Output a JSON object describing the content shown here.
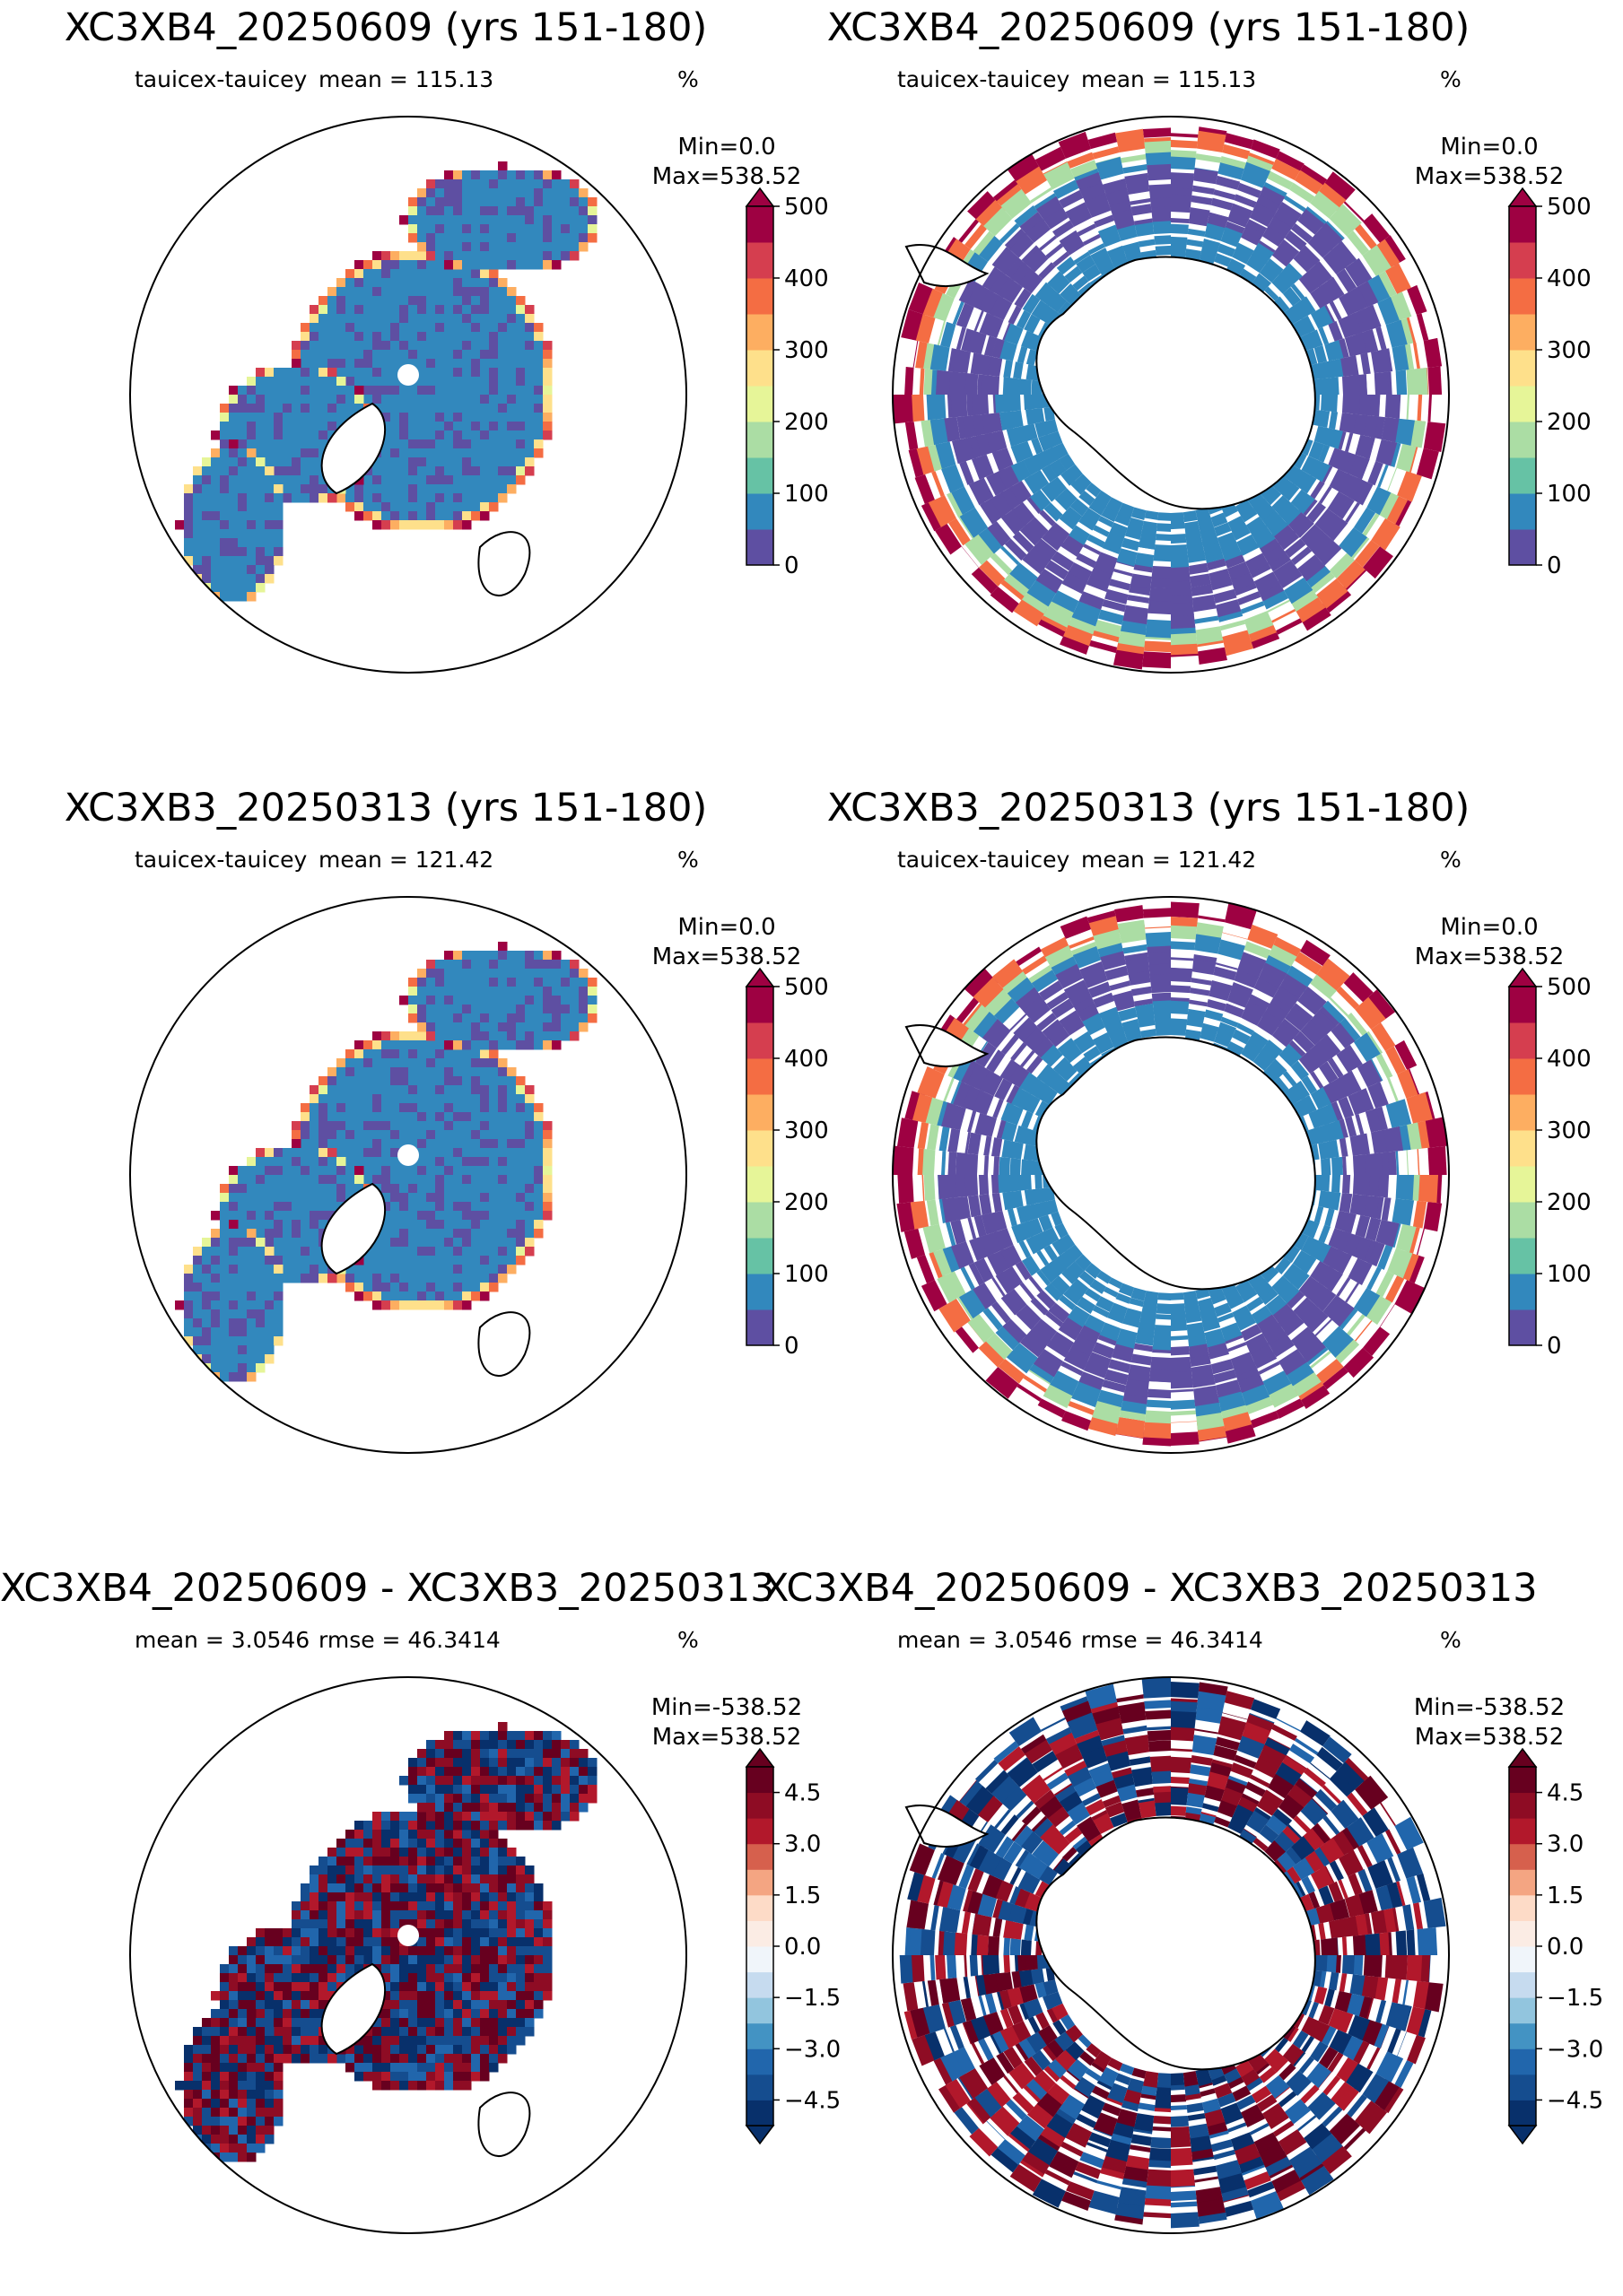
{
  "chart_data": [
    {
      "type": "heatmap",
      "hemisphere": "north",
      "title": "XC3XB4_20250609 (yrs 151-180)",
      "subtitle_left": "tauicex-tauicey",
      "subtitle_mid": "mean = 115.13",
      "units": "%",
      "min_label": "Min=0.0",
      "max_label": "Max=538.52",
      "colormap": "Spectral_r",
      "colorbar": {
        "ticks": [
          "0",
          "100",
          "200",
          "300",
          "400",
          "500"
        ],
        "vmin": 0,
        "vmax": 500,
        "levels": 10,
        "extend": "max",
        "colors": [
          "#5e4fa2",
          "#3288bd",
          "#66c2a5",
          "#abdda4",
          "#e6f598",
          "#fee08b",
          "#fdae61",
          "#f46d43",
          "#d53e4f",
          "#9e0142"
        ]
      }
    },
    {
      "type": "heatmap",
      "hemisphere": "south",
      "title": "XC3XB4_20250609 (yrs 151-180)",
      "subtitle_left": "tauicex-tauicey",
      "subtitle_mid": "mean = 115.13",
      "units": "%",
      "min_label": "Min=0.0",
      "max_label": "Max=538.52",
      "colormap": "Spectral_r",
      "colorbar": {
        "ticks": [
          "0",
          "100",
          "200",
          "300",
          "400",
          "500"
        ],
        "vmin": 0,
        "vmax": 500,
        "levels": 10,
        "extend": "max",
        "colors": [
          "#5e4fa2",
          "#3288bd",
          "#66c2a5",
          "#abdda4",
          "#e6f598",
          "#fee08b",
          "#fdae61",
          "#f46d43",
          "#d53e4f",
          "#9e0142"
        ]
      }
    },
    {
      "type": "heatmap",
      "hemisphere": "north",
      "title": "XC3XB3_20250313 (yrs 151-180)",
      "subtitle_left": "tauicex-tauicey",
      "subtitle_mid": "mean = 121.42",
      "units": "%",
      "min_label": "Min=0.0",
      "max_label": "Max=538.52",
      "colormap": "Spectral_r",
      "colorbar": {
        "ticks": [
          "0",
          "100",
          "200",
          "300",
          "400",
          "500"
        ],
        "vmin": 0,
        "vmax": 500,
        "levels": 10,
        "extend": "max",
        "colors": [
          "#5e4fa2",
          "#3288bd",
          "#66c2a5",
          "#abdda4",
          "#e6f598",
          "#fee08b",
          "#fdae61",
          "#f46d43",
          "#d53e4f",
          "#9e0142"
        ]
      }
    },
    {
      "type": "heatmap",
      "hemisphere": "south",
      "title": "XC3XB3_20250313 (yrs 151-180)",
      "subtitle_left": "tauicex-tauicey",
      "subtitle_mid": "mean = 121.42",
      "units": "%",
      "min_label": "Min=0.0",
      "max_label": "Max=538.52",
      "colormap": "Spectral_r",
      "colorbar": {
        "ticks": [
          "0",
          "100",
          "200",
          "300",
          "400",
          "500"
        ],
        "vmin": 0,
        "vmax": 500,
        "levels": 10,
        "extend": "max",
        "colors": [
          "#5e4fa2",
          "#3288bd",
          "#66c2a5",
          "#abdda4",
          "#e6f598",
          "#fee08b",
          "#fdae61",
          "#f46d43",
          "#d53e4f",
          "#9e0142"
        ]
      }
    },
    {
      "type": "heatmap",
      "hemisphere": "north",
      "title": "XC3XB4_20250609 - XC3XB3_20250313",
      "subtitle_left": "mean = 3.0546",
      "subtitle_mid": "rmse = 46.3414",
      "units": "%",
      "min_label": "Min=-538.52",
      "max_label": "Max=538.52",
      "colormap": "RdBu_r",
      "colorbar": {
        "ticks": [
          "−4.5",
          "−3.0",
          "−1.5",
          "0.0",
          "1.5",
          "3.0",
          "4.5"
        ],
        "vmin": -5.25,
        "vmax": 5.25,
        "levels": 14,
        "extend": "both",
        "colors": [
          "#08306b",
          "#154d8f",
          "#2166ac",
          "#4393c3",
          "#92c5de",
          "#c6dbef",
          "#f0f5fa",
          "#fbece4",
          "#fddbc7",
          "#f4a582",
          "#d6604d",
          "#b2182b",
          "#8e0c24",
          "#67001f"
        ]
      }
    },
    {
      "type": "heatmap",
      "hemisphere": "south",
      "title": "XC3XB4_20250609 - XC3XB3_20250313",
      "subtitle_left": "mean = 3.0546",
      "subtitle_mid": "rmse = 46.3414",
      "units": "%",
      "min_label": "Min=-538.52",
      "max_label": "Max=538.52",
      "colormap": "RdBu_r",
      "colorbar": {
        "ticks": [
          "−4.5",
          "−3.0",
          "−1.5",
          "0.0",
          "1.5",
          "3.0",
          "4.5"
        ],
        "vmin": -5.25,
        "vmax": 5.25,
        "levels": 14,
        "extend": "both",
        "colors": [
          "#08306b",
          "#154d8f",
          "#2166ac",
          "#4393c3",
          "#92c5de",
          "#c6dbef",
          "#f0f5fa",
          "#fbece4",
          "#fddbc7",
          "#f4a582",
          "#d6604d",
          "#b2182b",
          "#8e0c24",
          "#67001f"
        ]
      }
    }
  ]
}
